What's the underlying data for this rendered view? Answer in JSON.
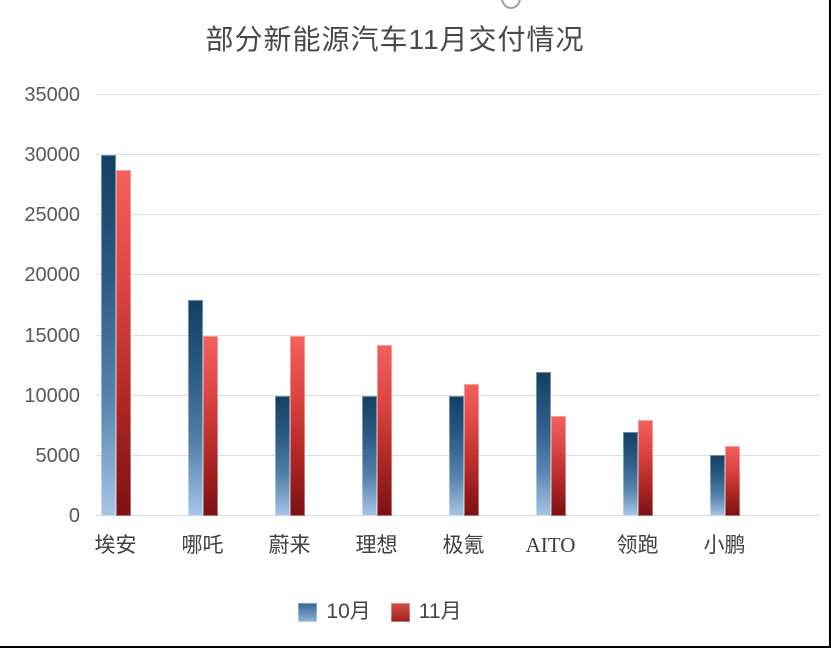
{
  "chart_data": {
    "type": "bar",
    "title": "部分新能源汽车11月交付情况",
    "categories": [
      "埃安",
      "哪吒",
      "蔚来",
      "理想",
      "极氪",
      "AITO",
      "领跑",
      "小鹏"
    ],
    "series": [
      {
        "name": "10月",
        "values": [
          30000,
          18000,
          10000,
          10000,
          10000,
          12000,
          7000,
          5100
        ],
        "gradient": [
          "#123f63",
          "#2b5a84",
          "#5581ab",
          "#a6c6e6"
        ],
        "legend_gradient": [
          "#36648f",
          "#8fb4d8"
        ]
      },
      {
        "name": "11月",
        "values": [
          28800,
          15000,
          15000,
          14200,
          11000,
          8300,
          8000,
          5800
        ],
        "gradient": [
          "#f4605c",
          "#dc4541",
          "#b02824",
          "#7a1113"
        ],
        "legend_gradient": [
          "#d4504b",
          "#9c1f1c"
        ]
      }
    ],
    "xlabel": "",
    "ylabel": "",
    "ylim": [
      0,
      35000
    ],
    "ytick_step": 5000,
    "ytick_labels": [
      "0",
      "5000",
      "10000",
      "15000",
      "20000",
      "25000",
      "30000",
      "35000"
    ],
    "grid": true,
    "legend_position": "bottom",
    "colors": {
      "gridline": "#dcdde0",
      "axis_text": "#595959",
      "category_text": "#3f3f3f",
      "title_text": "#484848",
      "frame_border": "#000000"
    }
  }
}
